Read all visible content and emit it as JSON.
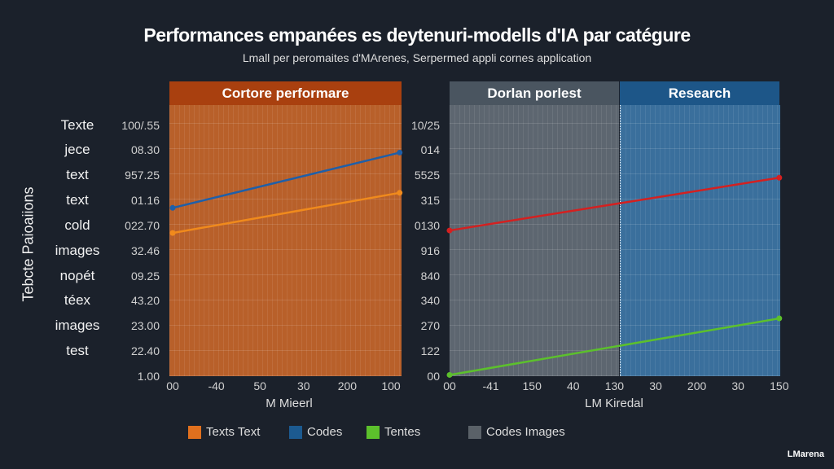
{
  "chart_data": [
    {
      "type": "line",
      "title": "Performances empanées es deytenuri-modells d'IA par catégure",
      "subtitle": "Lmall per peromaites d'MArenes, Serpermed appli cornes application",
      "ylabel": "Tebcte Paioaiions",
      "categories_left": [
        "Texte",
        "jece",
        "text",
        "text",
        "cold",
        "images",
        "noρét",
        "téex",
        "images",
        "test"
      ],
      "panel_header": "Cortore performare",
      "panel_color": "#b8602a",
      "header_color": "#a9400f",
      "yticks": [
        "100/.55",
        "08.30",
        "957.25",
        "01.16",
        "022.70",
        "32.46",
        "09.25",
        "43.20",
        "23.00",
        "22.40",
        "1.00"
      ],
      "xticks": [
        "00",
        "-40",
        "50",
        "30",
        "200",
        "100"
      ],
      "xlabel": "M Mieerl",
      "series": [
        {
          "color": "#1f5fa8",
          "x": [
            0,
            5.2
          ],
          "y": [
            6.7,
            8.9
          ]
        },
        {
          "color": "#f08a1c",
          "x": [
            0,
            5.2
          ],
          "y": [
            5.7,
            7.3
          ]
        }
      ]
    },
    {
      "type": "line",
      "panel_headers": [
        "Dorlan porlest",
        "Research"
      ],
      "panel_colors": [
        "#5d6670",
        "#3a6f9c"
      ],
      "header_colors": [
        "#4a5560",
        "#1d5688"
      ],
      "yticks": [
        "10/25",
        "014",
        "5525",
        "315",
        "0130",
        "916",
        "840",
        "340",
        "270",
        "122",
        "00"
      ],
      "xticks": [
        "00",
        "-41",
        "150",
        "40",
        "130",
        "30",
        "200",
        "30",
        "150"
      ],
      "xlabel": "LM Kiredal",
      "series": [
        {
          "color": "#d42020",
          "x": [
            0,
            8
          ],
          "y": [
            5.8,
            7.9
          ]
        },
        {
          "color": "#5cc02c",
          "x": [
            0,
            8
          ],
          "y": [
            0.05,
            2.3
          ]
        }
      ]
    }
  ],
  "legend": [
    {
      "label": "Texts Text",
      "color": "#e0701e"
    },
    {
      "label": "Codes",
      "color": "#1c5a90"
    },
    {
      "label": "Tentes",
      "color": "#5cc02c"
    },
    {
      "label": "Codes Images",
      "color": "#5a6168"
    }
  ],
  "brand": "LMarena"
}
